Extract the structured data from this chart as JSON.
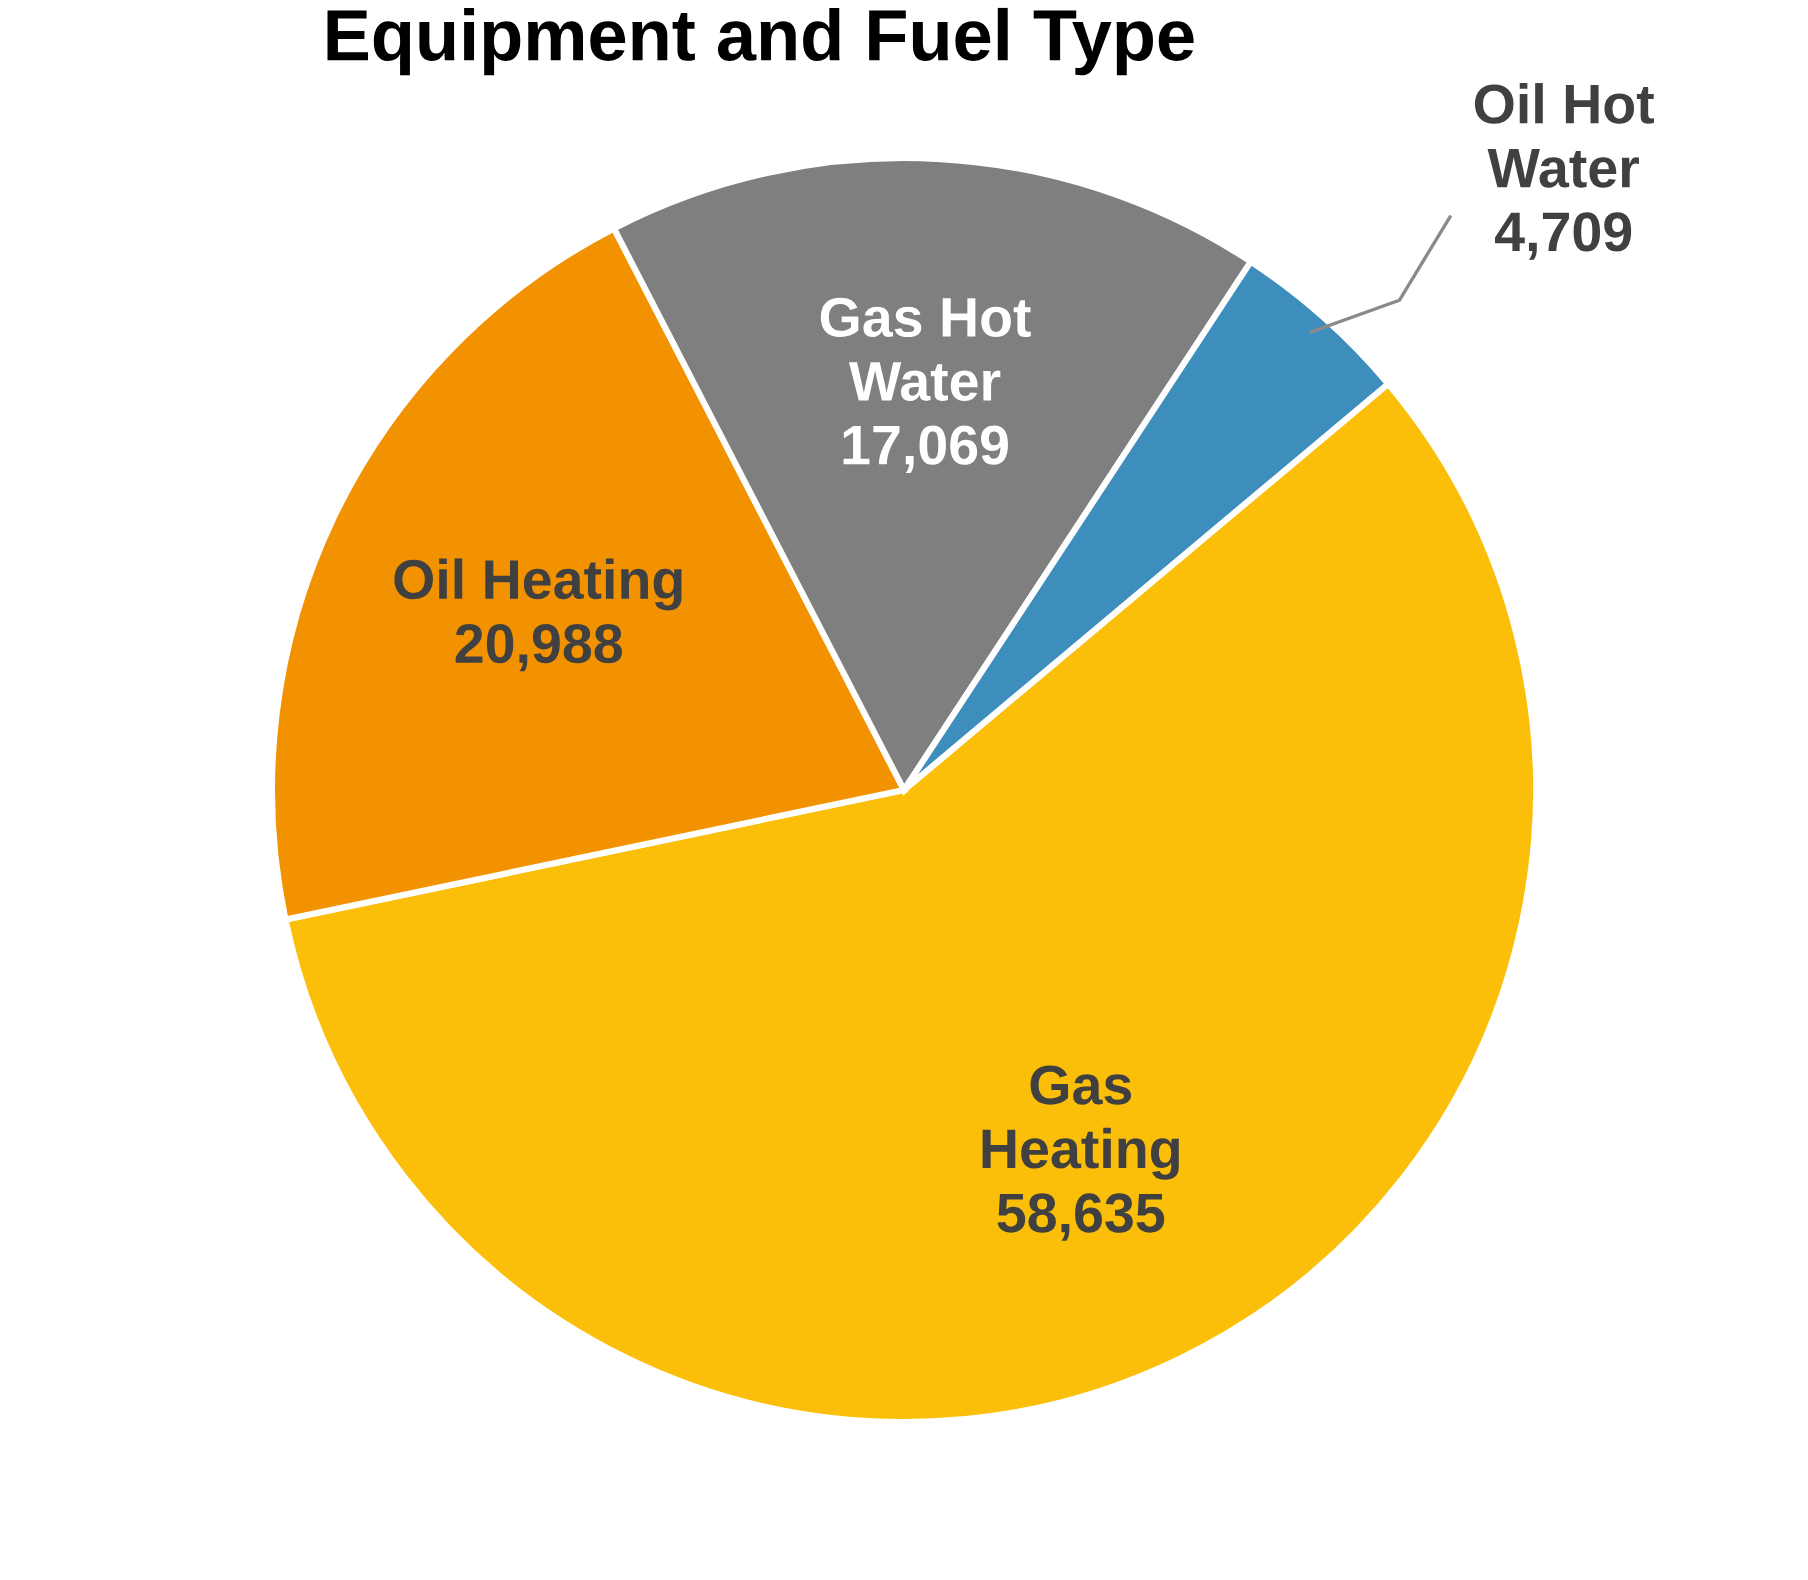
{
  "chart_data": {
    "type": "pie",
    "title": "Equipment and Fuel Type",
    "categories": [
      "Gas\nHeating",
      "Oil Heating",
      "Gas Hot\nWater",
      "Oil Hot\nWater"
    ],
    "values": [
      58635,
      20988,
      17069,
      4709
    ],
    "value_labels": [
      "58,635",
      "20,988",
      "17,069",
      "4,709"
    ],
    "colors": [
      "#fbbf0a",
      "#f39200",
      "#7f7f7f",
      "#3d8dbd"
    ],
    "legend": false
  }
}
